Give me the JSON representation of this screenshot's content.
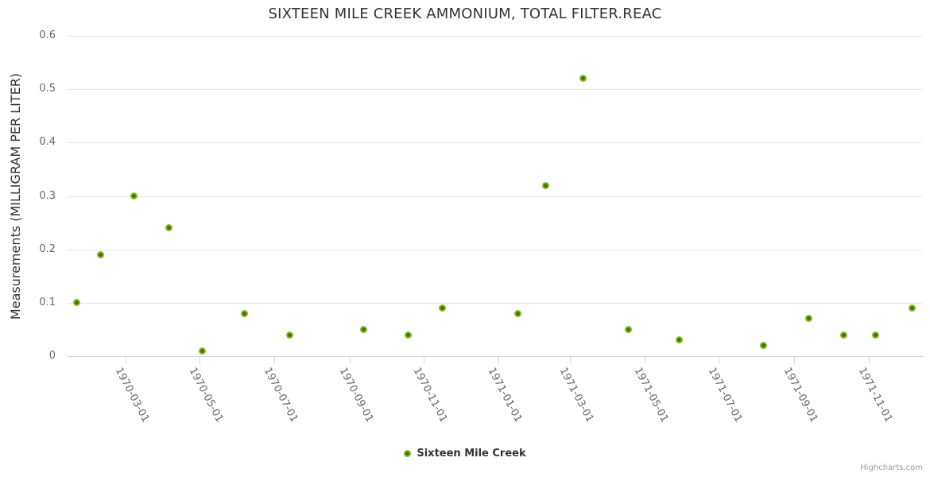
{
  "title": "SIXTEEN MILE CREEK AMMONIUM, TOTAL FILTER.REAC",
  "credit": "Highcharts.com",
  "legend": {
    "label": "Sixteen Mile Creek"
  },
  "chart_data": {
    "type": "scatter",
    "title": "SIXTEEN MILE CREEK AMMONIUM, TOTAL FILTER.REAC",
    "xlabel": "",
    "ylabel": "Measurements (MILLIGRAM PER LITER)",
    "ylim": [
      0,
      0.6
    ],
    "y_ticks": [
      0,
      0.1,
      0.2,
      0.3,
      0.4,
      0.5,
      0.6
    ],
    "y_tick_labels": [
      "0",
      "0.1",
      "0.2",
      "0.3",
      "0.4",
      "0.5",
      "0.6"
    ],
    "xlim": [
      "1970-01-12",
      "1971-12-15"
    ],
    "x_ticks": [
      "1970-03-01",
      "1970-05-01",
      "1970-07-01",
      "1970-09-01",
      "1970-11-01",
      "1971-01-01",
      "1971-03-01",
      "1971-05-01",
      "1971-07-01",
      "1971-09-01",
      "1971-11-01"
    ],
    "grid": true,
    "legend_position": "bottom",
    "series": [
      {
        "name": "Sixteen Mile Creek",
        "color": "#86b91f",
        "marker_center_color": "#3c6f07",
        "points": [
          {
            "date": "1970-01-20",
            "value": 0.1
          },
          {
            "date": "1970-02-09",
            "value": 0.19
          },
          {
            "date": "1970-03-08",
            "value": 0.3
          },
          {
            "date": "1970-04-06",
            "value": 0.24
          },
          {
            "date": "1970-05-03",
            "value": 0.01
          },
          {
            "date": "1970-06-07",
            "value": 0.08
          },
          {
            "date": "1970-07-14",
            "value": 0.04
          },
          {
            "date": "1970-09-13",
            "value": 0.05
          },
          {
            "date": "1970-10-19",
            "value": 0.04
          },
          {
            "date": "1970-11-16",
            "value": 0.09
          },
          {
            "date": "1971-01-17",
            "value": 0.08
          },
          {
            "date": "1971-02-09",
            "value": 0.32
          },
          {
            "date": "1971-03-12",
            "value": 0.52
          },
          {
            "date": "1971-04-18",
            "value": 0.05
          },
          {
            "date": "1971-05-30",
            "value": 0.03
          },
          {
            "date": "1971-08-07",
            "value": 0.02
          },
          {
            "date": "1971-09-13",
            "value": 0.07
          },
          {
            "date": "1971-10-12",
            "value": 0.04
          },
          {
            "date": "1971-11-07",
            "value": 0.04
          },
          {
            "date": "1971-12-07",
            "value": 0.09
          }
        ]
      }
    ]
  }
}
